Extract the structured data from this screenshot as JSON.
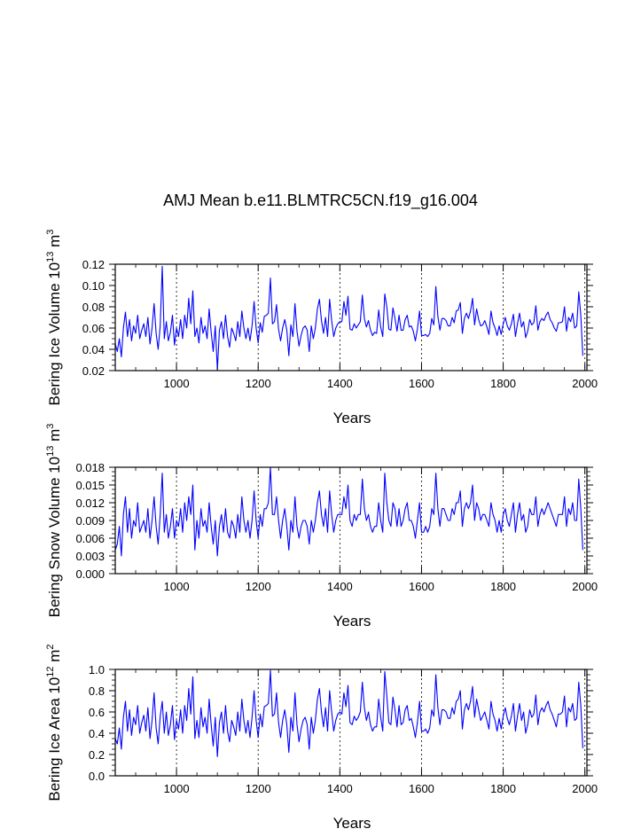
{
  "title": "AMJ Mean b.e11.BLMTRC5CN.f19_g16.004",
  "colors": {
    "series": "#0000ff",
    "axis": "#000000",
    "grid": "#000000",
    "background": "#ffffff"
  },
  "chart_data": [
    {
      "type": "line",
      "ylabel_text": "Bering Ice Volume 10",
      "ylabel_exp": "13",
      "ylabel_unit": "m",
      "ylabel_unit_exp": "3",
      "xlabel": "Years",
      "xlim": [
        850,
        2005
      ],
      "ylim": [
        0.02,
        0.12
      ],
      "xticks": [
        1000,
        1200,
        1400,
        1600,
        1800,
        2000
      ],
      "xtick_labels": [
        "1000",
        "1200",
        "1400",
        "1600",
        "1800",
        "2000"
      ],
      "yticks": [
        0.02,
        0.04,
        0.06,
        0.08,
        0.1,
        0.12
      ],
      "ytick_labels": [
        "0.02",
        "0.04",
        "0.06",
        "0.08",
        "0.10",
        "0.12"
      ],
      "grid_x": true,
      "series": [
        {
          "name": "Bering Ice Volume",
          "x_start": 850,
          "x_step": 5,
          "values": [
            0.045,
            0.038,
            0.05,
            0.033,
            0.06,
            0.075,
            0.052,
            0.068,
            0.048,
            0.062,
            0.055,
            0.072,
            0.05,
            0.058,
            0.064,
            0.052,
            0.07,
            0.045,
            0.06,
            0.083,
            0.055,
            0.04,
            0.062,
            0.118,
            0.05,
            0.066,
            0.048,
            0.056,
            0.072,
            0.044,
            0.06,
            0.052,
            0.068,
            0.05,
            0.072,
            0.06,
            0.088,
            0.064,
            0.095,
            0.052,
            0.06,
            0.046,
            0.07,
            0.055,
            0.062,
            0.05,
            0.078,
            0.056,
            0.038,
            0.062,
            0.021,
            0.058,
            0.066,
            0.05,
            0.072,
            0.052,
            0.042,
            0.06,
            0.055,
            0.048,
            0.066,
            0.052,
            0.076,
            0.06,
            0.05,
            0.06,
            0.048,
            0.062,
            0.085,
            0.06,
            0.046,
            0.065,
            0.056,
            0.071,
            0.072,
            0.074,
            0.107,
            0.064,
            0.066,
            0.082,
            0.059,
            0.048,
            0.06,
            0.068,
            0.058,
            0.034,
            0.063,
            0.052,
            0.083,
            0.057,
            0.043,
            0.053,
            0.06,
            0.062,
            0.058,
            0.038,
            0.062,
            0.05,
            0.06,
            0.078,
            0.087,
            0.067,
            0.055,
            0.07,
            0.052,
            0.087,
            0.067,
            0.052,
            0.06,
            0.064,
            0.066,
            0.066,
            0.085,
            0.072,
            0.09,
            0.059,
            0.058,
            0.064,
            0.06,
            0.063,
            0.066,
            0.091,
            0.069,
            0.061,
            0.067,
            0.058,
            0.053,
            0.056,
            0.055,
            0.077,
            0.061,
            0.052,
            0.092,
            0.08,
            0.059,
            0.058,
            0.079,
            0.069,
            0.057,
            0.072,
            0.058,
            0.058,
            0.068,
            0.072,
            0.061,
            0.062,
            0.057,
            0.048,
            0.059,
            0.076,
            0.053,
            0.053,
            0.054,
            0.052,
            0.055,
            0.069,
            0.063,
            0.099,
            0.071,
            0.058,
            0.069,
            0.069,
            0.067,
            0.062,
            0.062,
            0.07,
            0.065,
            0.076,
            0.077,
            0.084,
            0.055,
            0.069,
            0.074,
            0.069,
            0.076,
            0.088,
            0.063,
            0.078,
            0.068,
            0.062,
            0.063,
            0.067,
            0.061,
            0.054,
            0.076,
            0.065,
            0.06,
            0.053,
            0.062,
            0.054,
            0.064,
            0.07,
            0.062,
            0.058,
            0.064,
            0.073,
            0.052,
            0.064,
            0.074,
            0.061,
            0.066,
            0.051,
            0.057,
            0.068,
            0.063,
            0.065,
            0.081,
            0.058,
            0.066,
            0.069,
            0.067,
            0.072,
            0.075,
            0.068,
            0.065,
            0.06,
            0.057,
            0.065,
            0.065,
            0.066,
            0.08,
            0.057,
            0.07,
            0.066,
            0.074,
            0.06,
            0.062,
            0.094,
            0.072,
            0.034
          ]
        }
      ]
    },
    {
      "type": "line",
      "ylabel_text": "Bering Snow Volume 10",
      "ylabel_exp": "13",
      "ylabel_unit": "m",
      "ylabel_unit_exp": "3",
      "xlabel": "Years",
      "xlim": [
        850,
        2005
      ],
      "ylim": [
        0.0,
        0.018
      ],
      "xticks": [
        1000,
        1200,
        1400,
        1600,
        1800,
        2000
      ],
      "xtick_labels": [
        "1000",
        "1200",
        "1400",
        "1600",
        "1800",
        "2000"
      ],
      "yticks": [
        0.0,
        0.003,
        0.006,
        0.009,
        0.012,
        0.015,
        0.018
      ],
      "ytick_labels": [
        "0.000",
        "0.003",
        "0.006",
        "0.009",
        "0.012",
        "0.015",
        "0.018"
      ],
      "grid_x": true,
      "series": [
        {
          "name": "Bering Snow Volume",
          "x_start": 850,
          "x_step": 5,
          "values": [
            0.004,
            0.005,
            0.008,
            0.003,
            0.01,
            0.013,
            0.007,
            0.011,
            0.006,
            0.009,
            0.008,
            0.012,
            0.007,
            0.008,
            0.009,
            0.007,
            0.011,
            0.006,
            0.009,
            0.013,
            0.008,
            0.005,
            0.01,
            0.017,
            0.007,
            0.01,
            0.006,
            0.008,
            0.011,
            0.006,
            0.009,
            0.008,
            0.011,
            0.007,
            0.012,
            0.009,
            0.013,
            0.01,
            0.015,
            0.004,
            0.009,
            0.006,
            0.011,
            0.008,
            0.009,
            0.007,
            0.012,
            0.008,
            0.005,
            0.009,
            0.003,
            0.008,
            0.01,
            0.007,
            0.011,
            0.007,
            0.006,
            0.009,
            0.008,
            0.006,
            0.01,
            0.007,
            0.013,
            0.009,
            0.007,
            0.009,
            0.006,
            0.009,
            0.014,
            0.009,
            0.006,
            0.01,
            0.008,
            0.011,
            0.011,
            0.012,
            0.018,
            0.01,
            0.01,
            0.013,
            0.009,
            0.006,
            0.009,
            0.011,
            0.008,
            0.004,
            0.009,
            0.007,
            0.013,
            0.008,
            0.006,
            0.008,
            0.009,
            0.009,
            0.008,
            0.005,
            0.009,
            0.007,
            0.009,
            0.012,
            0.014,
            0.01,
            0.008,
            0.011,
            0.007,
            0.014,
            0.01,
            0.007,
            0.009,
            0.01,
            0.01,
            0.01,
            0.013,
            0.011,
            0.015,
            0.009,
            0.008,
            0.01,
            0.009,
            0.01,
            0.01,
            0.016,
            0.011,
            0.009,
            0.01,
            0.008,
            0.007,
            0.008,
            0.008,
            0.012,
            0.009,
            0.007,
            0.017,
            0.012,
            0.009,
            0.008,
            0.012,
            0.011,
            0.008,
            0.011,
            0.008,
            0.009,
            0.011,
            0.012,
            0.009,
            0.009,
            0.008,
            0.006,
            0.009,
            0.012,
            0.007,
            0.007,
            0.008,
            0.007,
            0.008,
            0.011,
            0.01,
            0.017,
            0.011,
            0.008,
            0.011,
            0.011,
            0.01,
            0.009,
            0.009,
            0.011,
            0.01,
            0.012,
            0.012,
            0.014,
            0.008,
            0.011,
            0.012,
            0.011,
            0.012,
            0.015,
            0.009,
            0.012,
            0.011,
            0.009,
            0.01,
            0.01,
            0.009,
            0.008,
            0.012,
            0.01,
            0.009,
            0.007,
            0.009,
            0.007,
            0.01,
            0.011,
            0.009,
            0.008,
            0.01,
            0.012,
            0.007,
            0.01,
            0.012,
            0.009,
            0.01,
            0.007,
            0.008,
            0.011,
            0.01,
            0.01,
            0.013,
            0.008,
            0.01,
            0.011,
            0.01,
            0.011,
            0.012,
            0.011,
            0.01,
            0.009,
            0.008,
            0.01,
            0.01,
            0.01,
            0.013,
            0.008,
            0.011,
            0.01,
            0.012,
            0.009,
            0.009,
            0.016,
            0.011,
            0.004
          ]
        }
      ]
    },
    {
      "type": "line",
      "ylabel_text": "Bering Ice Area 10",
      "ylabel_exp": "12",
      "ylabel_unit": "m",
      "ylabel_unit_exp": "2",
      "xlabel": "Years",
      "xlim": [
        850,
        2005
      ],
      "ylim": [
        0.0,
        1.0
      ],
      "xticks": [
        1000,
        1200,
        1400,
        1600,
        1800,
        2000
      ],
      "xtick_labels": [
        "1000",
        "1200",
        "1400",
        "1600",
        "1800",
        "2000"
      ],
      "yticks": [
        0.0,
        0.2,
        0.4,
        0.6,
        0.8,
        1.0
      ],
      "ytick_labels": [
        "0.0",
        "0.2",
        "0.4",
        "0.6",
        "0.8",
        "1.0"
      ],
      "grid_x": true,
      "series": [
        {
          "name": "Bering Ice Area",
          "x_start": 850,
          "x_step": 5,
          "values": [
            0.35,
            0.3,
            0.45,
            0.25,
            0.55,
            0.7,
            0.42,
            0.62,
            0.38,
            0.55,
            0.48,
            0.66,
            0.4,
            0.5,
            0.57,
            0.42,
            0.64,
            0.35,
            0.52,
            0.78,
            0.45,
            0.3,
            0.56,
            0.7,
            0.4,
            0.6,
            0.38,
            0.48,
            0.66,
            0.34,
            0.52,
            0.44,
            0.62,
            0.4,
            0.66,
            0.52,
            0.82,
            0.58,
            0.93,
            0.35,
            0.52,
            0.36,
            0.64,
            0.46,
            0.55,
            0.4,
            0.72,
            0.48,
            0.28,
            0.55,
            0.18,
            0.5,
            0.6,
            0.4,
            0.66,
            0.42,
            0.32,
            0.52,
            0.46,
            0.38,
            0.6,
            0.42,
            0.72,
            0.52,
            0.4,
            0.52,
            0.36,
            0.55,
            0.8,
            0.52,
            0.36,
            0.58,
            0.46,
            0.65,
            0.66,
            0.68,
            0.99,
            0.56,
            0.58,
            0.78,
            0.5,
            0.36,
            0.52,
            0.62,
            0.48,
            0.22,
            0.55,
            0.42,
            0.78,
            0.48,
            0.32,
            0.44,
            0.52,
            0.55,
            0.48,
            0.25,
            0.55,
            0.4,
            0.52,
            0.72,
            0.82,
            0.6,
            0.46,
            0.64,
            0.42,
            0.8,
            0.6,
            0.42,
            0.52,
            0.58,
            0.6,
            0.58,
            0.78,
            0.65,
            0.85,
            0.5,
            0.48,
            0.56,
            0.52,
            0.55,
            0.6,
            0.88,
            0.64,
            0.52,
            0.6,
            0.48,
            0.42,
            0.46,
            0.46,
            0.72,
            0.55,
            0.42,
            0.98,
            0.75,
            0.5,
            0.48,
            0.74,
            0.62,
            0.46,
            0.66,
            0.48,
            0.5,
            0.62,
            0.66,
            0.52,
            0.54,
            0.46,
            0.36,
            0.5,
            0.7,
            0.42,
            0.42,
            0.44,
            0.4,
            0.45,
            0.62,
            0.56,
            0.95,
            0.64,
            0.48,
            0.62,
            0.62,
            0.6,
            0.54,
            0.54,
            0.64,
            0.58,
            0.7,
            0.72,
            0.8,
            0.44,
            0.62,
            0.68,
            0.62,
            0.7,
            0.84,
            0.55,
            0.72,
            0.62,
            0.52,
            0.56,
            0.6,
            0.52,
            0.44,
            0.7,
            0.58,
            0.52,
            0.42,
            0.54,
            0.44,
            0.56,
            0.64,
            0.54,
            0.48,
            0.56,
            0.68,
            0.42,
            0.56,
            0.68,
            0.52,
            0.6,
            0.4,
            0.48,
            0.62,
            0.55,
            0.58,
            0.76,
            0.48,
            0.6,
            0.64,
            0.6,
            0.66,
            0.7,
            0.62,
            0.58,
            0.52,
            0.46,
            0.58,
            0.58,
            0.6,
            0.75,
            0.46,
            0.64,
            0.6,
            0.68,
            0.52,
            0.54,
            0.88,
            0.66,
            0.26
          ]
        }
      ]
    }
  ]
}
